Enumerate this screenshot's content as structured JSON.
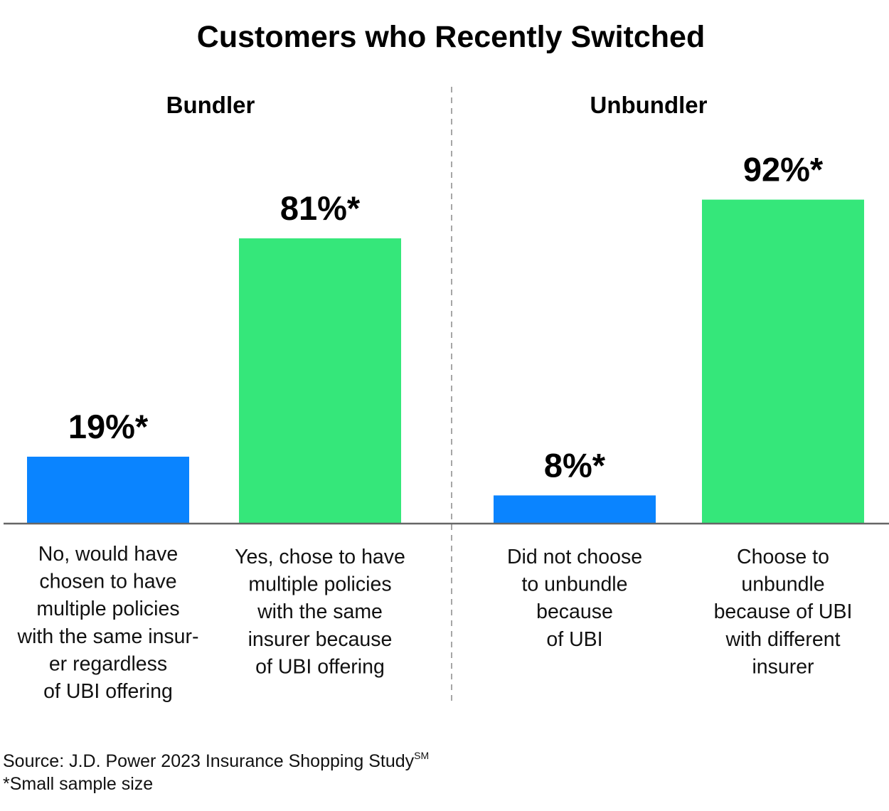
{
  "chart_data": {
    "type": "bar",
    "title": "Customers who Recently Switched",
    "groups": [
      {
        "name": "Bundler",
        "categories": [
          [
            "No, would have",
            "chosen to have",
            "multiple policies",
            "with the same insur-",
            "er regardless",
            "of UBI offering"
          ],
          [
            "Yes, chose to have",
            "multiple policies",
            "with the same",
            "insurer because",
            "of UBI offering"
          ]
        ],
        "values": [
          19,
          81
        ],
        "labels": [
          "19%*",
          "81%*"
        ]
      },
      {
        "name": "Unbundler",
        "categories": [
          [
            "Did not choose",
            "to unbundle",
            "because",
            "of UBI"
          ],
          [
            "Choose to",
            "unbundle",
            "because of UBI",
            "with different",
            "insurer"
          ]
        ],
        "values": [
          8,
          92
        ],
        "labels": [
          "8%*",
          "92%*"
        ]
      }
    ],
    "ylim": [
      0,
      100
    ],
    "colors": [
      "#0A84FF",
      "#35E77A"
    ],
    "grid": false
  },
  "footer": {
    "source": "Source: J.D. Power 2023 Insurance Shopping Study",
    "source_sup": "SM",
    "note": "*Small sample size"
  }
}
